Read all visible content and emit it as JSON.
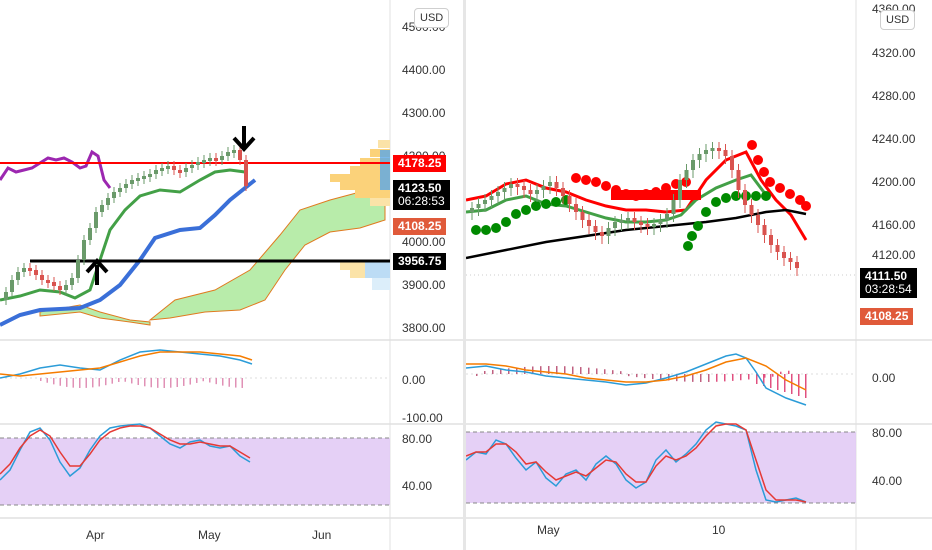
{
  "currency_button": "USD",
  "colors": {
    "up_candle": "#6a9a6a",
    "down_candle": "#d9534f",
    "red_line": "#ff0000",
    "black_line": "#000000",
    "purple_line": "#9c27b0",
    "green_line": "#43a047",
    "blue_line": "#3a6fd8",
    "cloud_green": "#b8ecaa",
    "macd_blue": "#2b9cd8",
    "macd_orange": "#f57c00",
    "stoch_band": "#e1c8f5",
    "psar_red": "#ff0000",
    "psar_green": "#008a00"
  },
  "left_chart": {
    "price_axis_ticks": [
      "4500.00",
      "4400.00",
      "4300.00",
      "4200.00",
      "4000.00",
      "3900.00",
      "3800.00"
    ],
    "price_tags": {
      "resistance": "4178.25",
      "last_price": "4123.50",
      "countdown": "06:28:53",
      "prev_close": "4108.25",
      "support": "3956.75"
    },
    "macd_axis_ticks": [
      "0.00",
      "-100.00"
    ],
    "stoch_axis_ticks": [
      "80.00",
      "40.00"
    ],
    "time_labels": [
      "Apr",
      "May",
      "Jun"
    ]
  },
  "right_chart": {
    "price_axis_ticks": [
      "4360.00",
      "4320.00",
      "4280.00",
      "4240.00",
      "4200.00",
      "4160.00",
      "4120.00"
    ],
    "price_tags": {
      "last_price": "4111.50",
      "countdown": "03:28:54",
      "prev_close": "4108.25"
    },
    "macd_axis_ticks": [
      "0.00"
    ],
    "stoch_axis_ticks": [
      "80.00",
      "40.00"
    ],
    "time_labels": [
      "May",
      "10"
    ]
  }
}
